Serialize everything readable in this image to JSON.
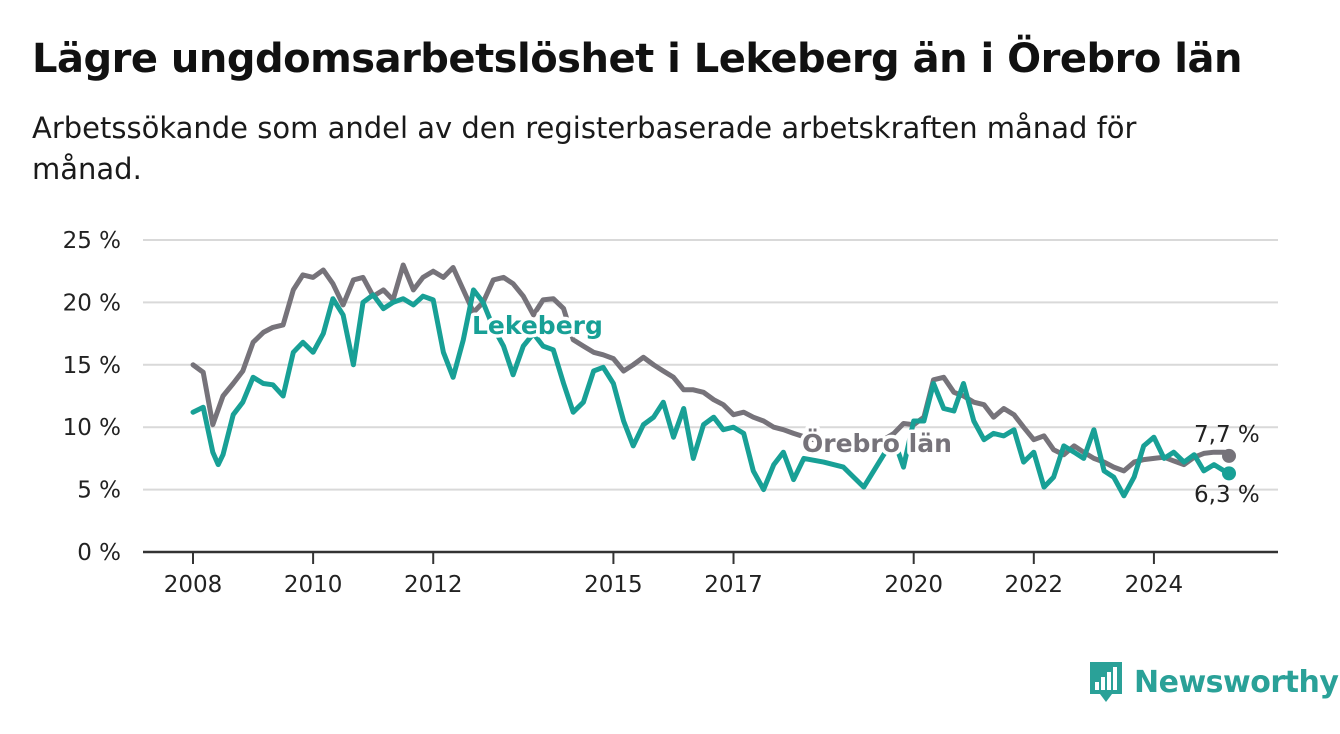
{
  "header": {
    "title": "Lägre ungdomsarbetslöshet i Lekeberg än i Örebro län",
    "subtitle": "Arbetssökande som andel av den registerbaserade arbetskraften månad för månad."
  },
  "brand": {
    "name": "Newsworthy",
    "color": "#2aa198"
  },
  "colors": {
    "lekeberg": "#18a096",
    "orebro": "#76737a",
    "grid": "#d9d9d9",
    "axis": "#333333"
  },
  "chart_data": {
    "type": "line",
    "title": "Lägre ungdomsarbetslöshet i Lekeberg än i Örebro län",
    "ylim": [
      0,
      25
    ],
    "xlim": [
      2008,
      2025.7
    ],
    "y_ticks": [
      "0 %",
      "5 %",
      "10 %",
      "15 %",
      "20 %",
      "25 %"
    ],
    "y_tick_values": [
      0,
      5,
      10,
      15,
      20,
      25
    ],
    "x_ticks": [
      "2008",
      "2010",
      "2012",
      "2015",
      "2017",
      "2020",
      "2022",
      "2024"
    ],
    "x_tick_values": [
      2008,
      2010,
      2012,
      2015,
      2017,
      2020,
      2022,
      2024
    ],
    "grid": true,
    "series": [
      {
        "name": "Örebro län",
        "color": "#76737a",
        "end_label": "7,7 %",
        "points": [
          [
            2008.0,
            15.0
          ],
          [
            2008.17,
            14.4
          ],
          [
            2008.33,
            10.2
          ],
          [
            2008.5,
            12.5
          ],
          [
            2008.67,
            13.5
          ],
          [
            2008.83,
            14.5
          ],
          [
            2009.0,
            16.8
          ],
          [
            2009.17,
            17.6
          ],
          [
            2009.33,
            18.0
          ],
          [
            2009.5,
            18.2
          ],
          [
            2009.67,
            21.0
          ],
          [
            2009.83,
            22.2
          ],
          [
            2010.0,
            22.0
          ],
          [
            2010.17,
            22.6
          ],
          [
            2010.33,
            21.5
          ],
          [
            2010.5,
            19.8
          ],
          [
            2010.67,
            21.8
          ],
          [
            2010.83,
            22.0
          ],
          [
            2011.0,
            20.5
          ],
          [
            2011.17,
            21.0
          ],
          [
            2011.33,
            20.2
          ],
          [
            2011.5,
            23.0
          ],
          [
            2011.67,
            21.0
          ],
          [
            2011.83,
            22.0
          ],
          [
            2012.0,
            22.5
          ],
          [
            2012.17,
            22.0
          ],
          [
            2012.33,
            22.8
          ],
          [
            2012.5,
            21.0
          ],
          [
            2012.67,
            19.2
          ],
          [
            2012.83,
            20.0
          ],
          [
            2013.0,
            21.8
          ],
          [
            2013.17,
            22.0
          ],
          [
            2013.33,
            21.5
          ],
          [
            2013.5,
            20.5
          ],
          [
            2013.67,
            19.0
          ],
          [
            2013.83,
            20.2
          ],
          [
            2014.0,
            20.3
          ],
          [
            2014.17,
            19.5
          ],
          [
            2014.33,
            17.0
          ],
          [
            2014.5,
            16.5
          ],
          [
            2014.67,
            16.0
          ],
          [
            2014.83,
            15.8
          ],
          [
            2015.0,
            15.5
          ],
          [
            2015.17,
            14.5
          ],
          [
            2015.33,
            15.0
          ],
          [
            2015.5,
            15.6
          ],
          [
            2015.67,
            15.0
          ],
          [
            2015.83,
            14.5
          ],
          [
            2016.0,
            14.0
          ],
          [
            2016.17,
            13.0
          ],
          [
            2016.33,
            13.0
          ],
          [
            2016.5,
            12.8
          ],
          [
            2016.67,
            12.2
          ],
          [
            2016.83,
            11.8
          ],
          [
            2017.0,
            11.0
          ],
          [
            2017.17,
            11.2
          ],
          [
            2017.33,
            10.8
          ],
          [
            2017.5,
            10.5
          ],
          [
            2017.67,
            10.0
          ],
          [
            2017.83,
            9.8
          ],
          [
            2018.0,
            9.5
          ],
          [
            2018.33,
            9.0
          ],
          [
            2018.67,
            8.8
          ],
          [
            2019.0,
            8.6
          ],
          [
            2019.33,
            8.5
          ],
          [
            2019.67,
            9.5
          ],
          [
            2019.83,
            10.3
          ],
          [
            2020.0,
            10.2
          ],
          [
            2020.17,
            10.8
          ],
          [
            2020.33,
            13.8
          ],
          [
            2020.5,
            14.0
          ],
          [
            2020.67,
            12.8
          ],
          [
            2020.83,
            12.5
          ],
          [
            2021.0,
            12.0
          ],
          [
            2021.17,
            11.8
          ],
          [
            2021.33,
            10.8
          ],
          [
            2021.5,
            11.5
          ],
          [
            2021.67,
            11.0
          ],
          [
            2021.83,
            10.0
          ],
          [
            2022.0,
            9.0
          ],
          [
            2022.17,
            9.3
          ],
          [
            2022.33,
            8.2
          ],
          [
            2022.5,
            7.8
          ],
          [
            2022.67,
            8.5
          ],
          [
            2022.83,
            8.0
          ],
          [
            2023.0,
            7.5
          ],
          [
            2023.17,
            7.2
          ],
          [
            2023.33,
            6.8
          ],
          [
            2023.5,
            6.5
          ],
          [
            2023.67,
            7.2
          ],
          [
            2023.83,
            7.4
          ],
          [
            2024.0,
            7.5
          ],
          [
            2024.17,
            7.6
          ],
          [
            2024.33,
            7.3
          ],
          [
            2024.5,
            7.0
          ],
          [
            2024.67,
            7.6
          ],
          [
            2024.83,
            7.9
          ],
          [
            2025.0,
            8.0
          ],
          [
            2025.17,
            8.0
          ],
          [
            2025.25,
            7.7
          ]
        ]
      },
      {
        "name": "Lekeberg",
        "color": "#18a096",
        "end_label": "6,3 %",
        "points": [
          [
            2008.0,
            11.2
          ],
          [
            2008.17,
            11.6
          ],
          [
            2008.33,
            8.0
          ],
          [
            2008.42,
            7.0
          ],
          [
            2008.5,
            7.8
          ],
          [
            2008.67,
            11.0
          ],
          [
            2008.83,
            12.0
          ],
          [
            2009.0,
            14.0
          ],
          [
            2009.17,
            13.5
          ],
          [
            2009.33,
            13.4
          ],
          [
            2009.5,
            12.5
          ],
          [
            2009.67,
            16.0
          ],
          [
            2009.83,
            16.8
          ],
          [
            2010.0,
            16.0
          ],
          [
            2010.17,
            17.5
          ],
          [
            2010.33,
            20.3
          ],
          [
            2010.5,
            19.0
          ],
          [
            2010.67,
            15.0
          ],
          [
            2010.83,
            20.0
          ],
          [
            2011.0,
            20.6
          ],
          [
            2011.17,
            19.5
          ],
          [
            2011.33,
            20.0
          ],
          [
            2011.5,
            20.3
          ],
          [
            2011.67,
            19.8
          ],
          [
            2011.83,
            20.5
          ],
          [
            2012.0,
            20.2
          ],
          [
            2012.17,
            16.0
          ],
          [
            2012.33,
            14.0
          ],
          [
            2012.5,
            17.0
          ],
          [
            2012.67,
            21.0
          ],
          [
            2012.83,
            20.0
          ],
          [
            2013.0,
            18.0
          ],
          [
            2013.17,
            16.5
          ],
          [
            2013.33,
            14.2
          ],
          [
            2013.5,
            16.5
          ],
          [
            2013.67,
            17.5
          ],
          [
            2013.83,
            16.5
          ],
          [
            2014.0,
            16.2
          ],
          [
            2014.17,
            13.5
          ],
          [
            2014.33,
            11.2
          ],
          [
            2014.5,
            12.0
          ],
          [
            2014.67,
            14.5
          ],
          [
            2014.83,
            14.8
          ],
          [
            2015.0,
            13.5
          ],
          [
            2015.17,
            10.5
          ],
          [
            2015.33,
            8.5
          ],
          [
            2015.5,
            10.2
          ],
          [
            2015.67,
            10.8
          ],
          [
            2015.83,
            12.0
          ],
          [
            2016.0,
            9.2
          ],
          [
            2016.17,
            11.5
          ],
          [
            2016.33,
            7.5
          ],
          [
            2016.5,
            10.2
          ],
          [
            2016.67,
            10.8
          ],
          [
            2016.83,
            9.8
          ],
          [
            2017.0,
            10.0
          ],
          [
            2017.17,
            9.5
          ],
          [
            2017.33,
            6.5
          ],
          [
            2017.5,
            5.0
          ],
          [
            2017.67,
            7.0
          ],
          [
            2017.83,
            8.0
          ],
          [
            2018.0,
            5.8
          ],
          [
            2018.17,
            7.5
          ],
          [
            2018.5,
            7.2
          ],
          [
            2018.83,
            6.8
          ],
          [
            2019.17,
            5.2
          ],
          [
            2019.5,
            7.8
          ],
          [
            2019.67,
            9.0
          ],
          [
            2019.83,
            6.8
          ],
          [
            2020.0,
            10.5
          ],
          [
            2020.17,
            10.5
          ],
          [
            2020.33,
            13.5
          ],
          [
            2020.5,
            11.5
          ],
          [
            2020.67,
            11.3
          ],
          [
            2020.83,
            13.5
          ],
          [
            2021.0,
            10.5
          ],
          [
            2021.17,
            9.0
          ],
          [
            2021.33,
            9.5
          ],
          [
            2021.5,
            9.3
          ],
          [
            2021.67,
            9.8
          ],
          [
            2021.83,
            7.2
          ],
          [
            2022.0,
            8.0
          ],
          [
            2022.17,
            5.2
          ],
          [
            2022.33,
            6.0
          ],
          [
            2022.5,
            8.5
          ],
          [
            2022.67,
            8.0
          ],
          [
            2022.83,
            7.5
          ],
          [
            2023.0,
            9.8
          ],
          [
            2023.17,
            6.5
          ],
          [
            2023.33,
            6.0
          ],
          [
            2023.5,
            4.5
          ],
          [
            2023.67,
            6.0
          ],
          [
            2023.83,
            8.5
          ],
          [
            2024.0,
            9.2
          ],
          [
            2024.17,
            7.5
          ],
          [
            2024.33,
            8.0
          ],
          [
            2024.5,
            7.2
          ],
          [
            2024.67,
            7.8
          ],
          [
            2024.83,
            6.5
          ],
          [
            2025.0,
            7.0
          ],
          [
            2025.17,
            6.5
          ],
          [
            2025.25,
            6.3
          ]
        ]
      }
    ]
  }
}
